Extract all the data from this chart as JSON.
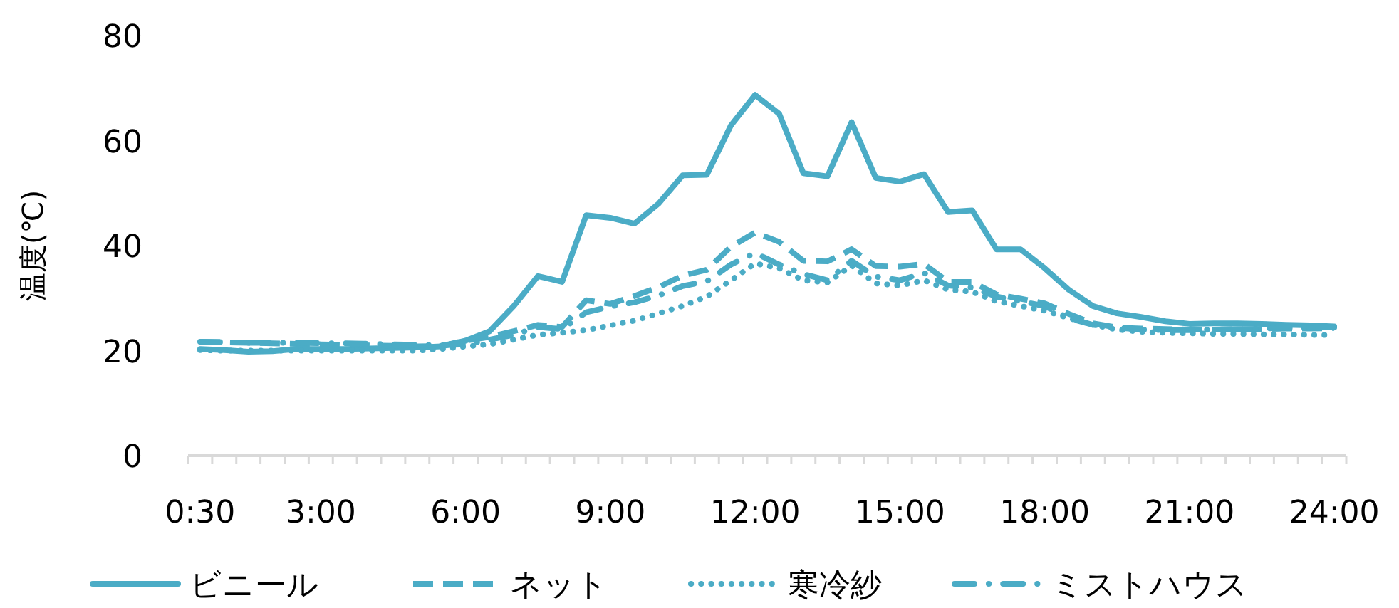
{
  "chart_data": {
    "type": "line",
    "ylabel": "温度(℃)",
    "categories": [
      "0:30",
      null,
      null,
      null,
      null,
      "3:00",
      null,
      null,
      null,
      null,
      null,
      "6:00",
      null,
      null,
      null,
      null,
      null,
      "9:00",
      null,
      null,
      null,
      null,
      null,
      "12:00",
      null,
      null,
      null,
      null,
      null,
      "15:00",
      null,
      null,
      null,
      null,
      null,
      "18:00",
      null,
      null,
      null,
      null,
      null,
      "21:00",
      null,
      null,
      null,
      null,
      null,
      "24:00"
    ],
    "ylim": [
      0,
      80
    ],
    "yticks": [
      0,
      20,
      40,
      60,
      80
    ],
    "grid": false,
    "legend": "bottom",
    "marker": "none",
    "series": [
      {
        "name": "ビニール",
        "color": "#4bacc6",
        "line_style": "solid",
        "values": [
          20.3,
          20.1,
          19.8,
          19.9,
          20.3,
          20.3,
          20.3,
          20.4,
          20.5,
          20.6,
          20.8,
          21.9,
          23.7,
          28.5,
          34.2,
          33.1,
          45.8,
          45.3,
          44.2,
          48,
          53.4,
          53.5,
          62.9,
          68.7,
          65.1,
          53.8,
          53.2,
          63.5,
          52.9,
          52.2,
          53.6,
          46.4,
          46.7,
          39.3,
          39.3,
          35.7,
          31.6,
          28.5,
          27.1,
          26.4,
          25.6,
          25.1,
          25.2,
          25.2,
          25.1,
          24.9,
          24.8,
          24.6
        ]
      },
      {
        "name": "ネット",
        "color": "#4bacc6",
        "line_style": "dashed",
        "values": [
          21.7,
          21.6,
          21.5,
          21.4,
          21.3,
          21.2,
          21.1,
          21.0,
          20.9,
          20.8,
          20.9,
          21.9,
          22.6,
          23.7,
          24.9,
          24.5,
          29.6,
          28.9,
          30.4,
          32.1,
          34.3,
          35.4,
          39.8,
          42.5,
          40.7,
          37.1,
          37,
          39.3,
          36.1,
          36,
          36.5,
          33.1,
          33.1,
          30.7,
          29.9,
          29,
          27,
          25.2,
          24.4,
          24.2,
          24.1,
          24,
          24,
          24.1,
          24.1,
          24.2,
          24.2,
          24.3
        ]
      },
      {
        "name": "寒冷紗",
        "color": "#4bacc6",
        "line_style": "dotted",
        "values": [
          20.1,
          20.0,
          20.0,
          20.0,
          20.0,
          20.0,
          20.0,
          20.0,
          20.0,
          20.0,
          20.3,
          20.8,
          21.2,
          22.1,
          23,
          23.4,
          23.9,
          24.8,
          25.7,
          27.1,
          28.5,
          30.3,
          33.4,
          36.6,
          35.7,
          33.4,
          33,
          36.2,
          32.8,
          32.4,
          33.4,
          31.6,
          31.2,
          29.4,
          28.5,
          27.6,
          26.2,
          24.9,
          24,
          23.6,
          23.4,
          23.3,
          23.2,
          23.2,
          23.1,
          23.1,
          23.0,
          23.0
        ]
      },
      {
        "name": "ミストハウス",
        "color": "#4bacc6",
        "line_style": "dashdot",
        "values": [
          21.7,
          21.6,
          21.5,
          21.5,
          21.5,
          21.4,
          21.4,
          21.3,
          21.2,
          21.1,
          21.0,
          21.2,
          22.1,
          23,
          24.5,
          24.1,
          27.3,
          28.4,
          29.2,
          30.5,
          32.3,
          33.2,
          36.4,
          38.6,
          36.4,
          34.6,
          33.4,
          37.1,
          34.1,
          33.4,
          34.8,
          32.4,
          32,
          30.3,
          29.4,
          28.5,
          26.2,
          24.9,
          24.4,
          24,
          23.9,
          23.9,
          24.0,
          24.1,
          24.2,
          24.3,
          24.4,
          24.4
        ]
      }
    ]
  }
}
